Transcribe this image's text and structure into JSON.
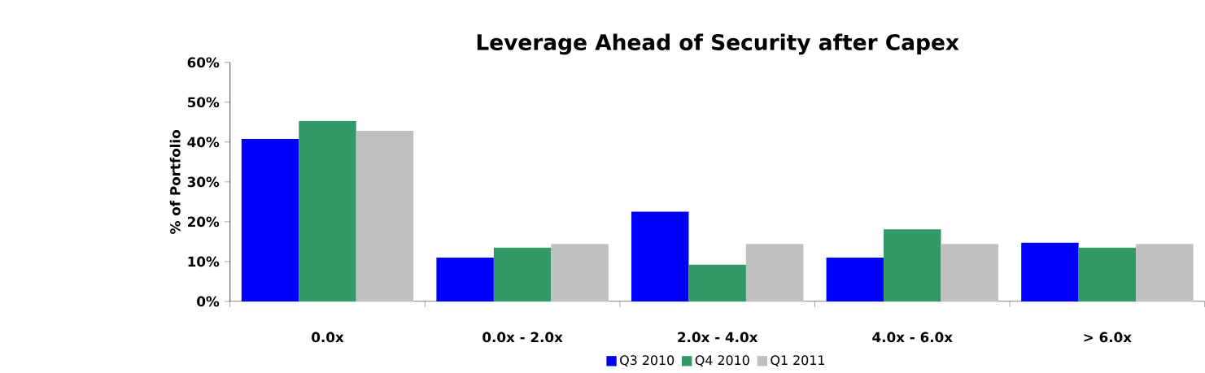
{
  "chart_data": {
    "type": "bar",
    "title": "Leverage Ahead of Security after Capex",
    "ylabel": "% of Portfolio",
    "categories": [
      "0.0x",
      "0.0x - 2.0x",
      "2.0x - 4.0x",
      "4.0x - 6.0x",
      "> 6.0x"
    ],
    "series": [
      {
        "name": "Q3 2010",
        "color": "#0000ff",
        "values": [
          40.8,
          11.0,
          22.5,
          11.0,
          14.7
        ]
      },
      {
        "name": "Q4 2010",
        "color": "#339966",
        "values": [
          45.3,
          13.5,
          9.2,
          18.1,
          13.5
        ]
      },
      {
        "name": "Q1 2011",
        "color": "#c0c0c0",
        "values": [
          42.8,
          14.4,
          14.4,
          14.4,
          14.4
        ]
      }
    ],
    "ylim": [
      0,
      60
    ],
    "yticks": [
      {
        "value": 0,
        "label": "0%"
      },
      {
        "value": 10,
        "label": "10%"
      },
      {
        "value": 20,
        "label": "20%"
      },
      {
        "value": 30,
        "label": "30%"
      },
      {
        "value": 40,
        "label": "40%"
      },
      {
        "value": 50,
        "label": "50%"
      },
      {
        "value": 60,
        "label": "60%"
      }
    ],
    "grid": false,
    "legend": "bottom"
  }
}
